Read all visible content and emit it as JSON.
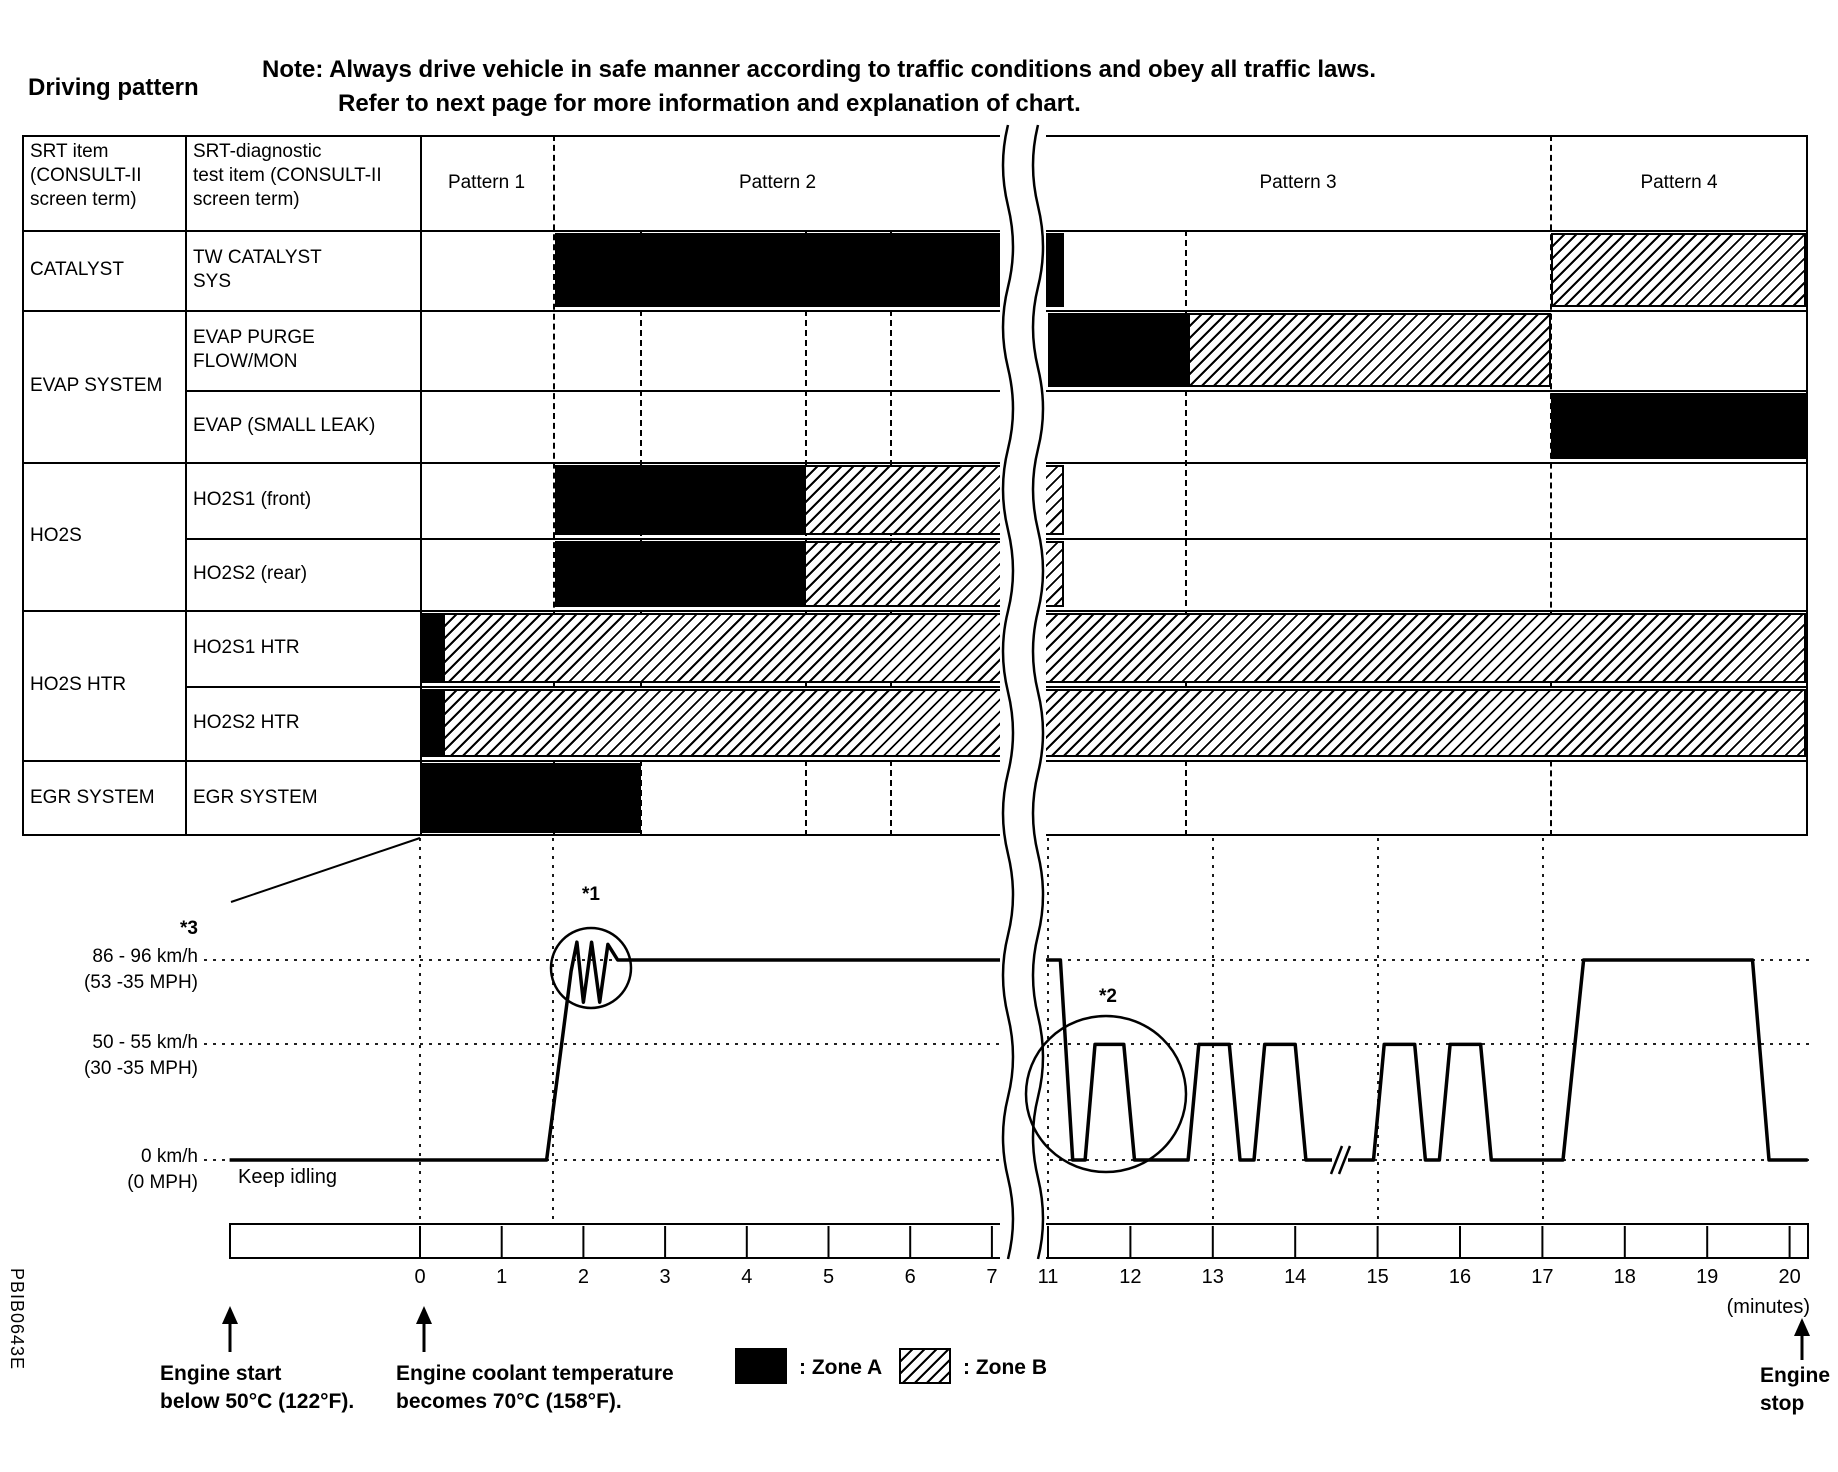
{
  "figure_code": "PBIB0643E",
  "title": "Driving pattern",
  "note": {
    "line1": "Note: Always drive vehicle in safe manner according to traffic conditions and obey all traffic laws.",
    "line2": "Refer to next page for more information and explanation of chart."
  },
  "table": {
    "headers": {
      "col1": "SRT item\n(CONSULT-II\nscreen term)",
      "col2": "SRT-diagnostic\ntest item (CONSULT-II\nscreen term)"
    },
    "groups": [
      {
        "label": "CATALYST",
        "items": [
          "TW CATALYST\nSYS"
        ]
      },
      {
        "label": "EVAP SYSTEM",
        "items": [
          "EVAP PURGE\nFLOW/MON",
          "EVAP (SMALL LEAK)"
        ]
      },
      {
        "label": "HO2S",
        "items": [
          "HO2S1 (front)",
          "HO2S2 (rear)"
        ]
      },
      {
        "label": "HO2S HTR",
        "items": [
          "HO2S1 HTR",
          "HO2S2 HTR"
        ]
      },
      {
        "label": "EGR SYSTEM",
        "items": [
          "EGR SYSTEM"
        ]
      }
    ]
  },
  "legend": {
    "engine_start": "Engine start\nbelow 50°C (122°F).",
    "coolant": "Engine coolant temperature\nbecomes 70°C (158°F).",
    "zone_a": ": Zone A",
    "zone_b": ": Zone B",
    "engine_stop": "Engine\nstop"
  },
  "chart_data": [
    {
      "type": "bar",
      "subtype": "monitoring-timeline-gantt",
      "time_unit": "minutes",
      "patterns": [
        {
          "label": "Pattern 1",
          "start": 0,
          "end": 1.65
        },
        {
          "label": "Pattern 2",
          "start": 1.65,
          "end": 11
        },
        {
          "label": "Pattern 3",
          "start": 11,
          "end": 17.1
        },
        {
          "label": "Pattern 4",
          "start": 17.1,
          "end": 20.25
        }
      ],
      "zones": {
        "A": "Zone A (solid black)",
        "B": "Zone B (hatched)"
      },
      "rows": [
        {
          "label": "TW CATALYST SYS",
          "segments": [
            {
              "zone": "A",
              "start": 1.65,
              "end": 11.2
            },
            {
              "zone": "B",
              "start": 17.1,
              "end": 20.25
            }
          ]
        },
        {
          "label": "EVAP PURGE FLOW/MON",
          "segments": [
            {
              "zone": "A",
              "start": 11.0,
              "end": 12.7
            },
            {
              "zone": "B",
              "start": 12.7,
              "end": 17.1
            }
          ]
        },
        {
          "label": "EVAP (SMALL LEAK)",
          "segments": [
            {
              "zone": "A",
              "start": 17.1,
              "end": 20.25
            }
          ]
        },
        {
          "label": "HO2S1 (front)",
          "segments": [
            {
              "zone": "A",
              "start": 1.65,
              "end": 4.7
            },
            {
              "zone": "B",
              "start": 4.7,
              "end": 11.2
            }
          ]
        },
        {
          "label": "HO2S2 (rear)",
          "segments": [
            {
              "zone": "A",
              "start": 1.65,
              "end": 4.7
            },
            {
              "zone": "B",
              "start": 4.7,
              "end": 11.2
            }
          ]
        },
        {
          "label": "HO2S1 HTR",
          "segments": [
            {
              "zone": "A",
              "start": 0,
              "end": 0.28
            },
            {
              "zone": "B",
              "start": 0.28,
              "end": 20.25
            }
          ]
        },
        {
          "label": "HO2S2 HTR",
          "segments": [
            {
              "zone": "A",
              "start": 0,
              "end": 0.28
            },
            {
              "zone": "B",
              "start": 0.28,
              "end": 20.25
            }
          ]
        },
        {
          "label": "EGR SYSTEM",
          "segments": [
            {
              "zone": "A",
              "start": 0,
              "end": 2.7
            }
          ]
        }
      ]
    },
    {
      "type": "line",
      "title": "Vehicle speed driving profile",
      "xlabel": "(minutes)",
      "x_ticks": [
        0,
        1,
        2,
        3,
        4,
        5,
        6,
        7,
        11,
        12,
        13,
        14,
        15,
        16,
        17,
        18,
        19,
        20
      ],
      "x_axis_break": [
        7.3,
        11
      ],
      "xlim": [
        -2.33,
        20.25
      ],
      "y_axis": [
        {
          "note": "*3",
          "label": "86 - 96 km/h",
          "sub": "(53 -35 MPH)",
          "kmh": 90
        },
        {
          "label": "50 - 55 km/h",
          "sub": "(30 -35 MPH)",
          "kmh": 52
        },
        {
          "label": "0 km/h",
          "sub": "(0 MPH)",
          "kmh": 0
        }
      ],
      "idle_label": "Keep idling",
      "annotations": [
        {
          "id": "*1",
          "meaning": "speed fluctuation while reaching cruise speed at about 2 minutes"
        },
        {
          "id": "*2",
          "meaning": "first 50 - 55 km/h drive pulse just after 11 minutes"
        }
      ],
      "points_min_kmh": [
        [
          -2.33,
          0
        ],
        [
          1.55,
          0
        ],
        [
          1.85,
          85
        ],
        [
          1.92,
          98
        ],
        [
          2.0,
          71
        ],
        [
          2.1,
          98
        ],
        [
          2.2,
          71
        ],
        [
          2.3,
          97
        ],
        [
          2.42,
          90
        ],
        [
          11.15,
          90
        ],
        [
          11.3,
          0
        ],
        [
          11.45,
          0
        ],
        [
          11.57,
          52
        ],
        [
          11.92,
          52
        ],
        [
          12.05,
          0
        ],
        [
          12.7,
          0
        ],
        [
          12.83,
          52
        ],
        [
          13.2,
          52
        ],
        [
          13.33,
          0
        ],
        [
          13.5,
          0
        ],
        [
          13.63,
          52
        ],
        [
          14.0,
          52
        ],
        [
          14.13,
          0
        ],
        [
          14.95,
          0
        ],
        [
          15.08,
          52
        ],
        [
          15.45,
          52
        ],
        [
          15.58,
          0
        ],
        [
          15.75,
          0
        ],
        [
          15.88,
          52
        ],
        [
          16.25,
          52
        ],
        [
          16.38,
          0
        ],
        [
          17.25,
          0
        ],
        [
          17.5,
          90
        ],
        [
          19.55,
          90
        ],
        [
          19.75,
          0
        ],
        [
          20.22,
          0
        ]
      ]
    }
  ]
}
